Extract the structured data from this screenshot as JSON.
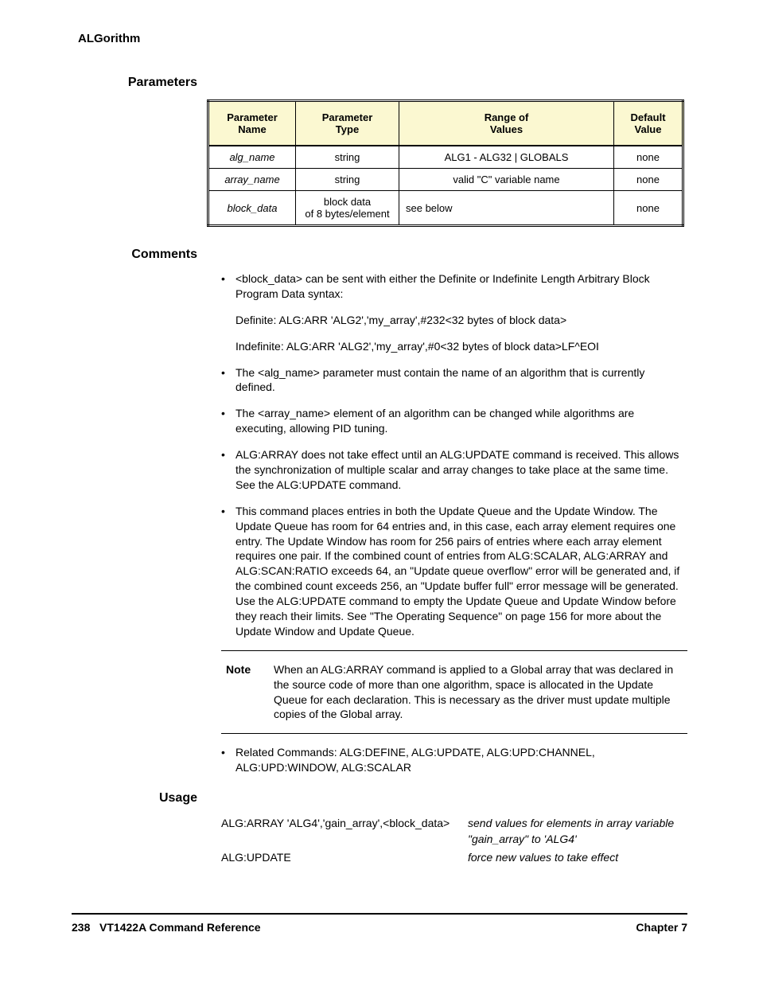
{
  "header": {
    "subsystem": "ALGorithm"
  },
  "parameters": {
    "section_label": "Parameters",
    "columns": [
      "Parameter\nName",
      "Parameter\nType",
      "Range of\nValues",
      "Default\nValue"
    ],
    "rows": [
      {
        "name": "alg_name",
        "type": "string",
        "range": "ALG1 - ALG32 | GLOBALS",
        "default": "none"
      },
      {
        "name": "array_name",
        "type": "string",
        "range": "valid \"C\" variable name",
        "default": "none"
      },
      {
        "name": "block_data",
        "type": "block data\nof 8 bytes/element",
        "range": "see below",
        "default": "none"
      }
    ],
    "table_colors": {
      "header_bg": "#fbf8d1",
      "border": "#000000"
    }
  },
  "comments": {
    "section_label": "Comments",
    "items": [
      "<block_data> can be sent with either the Definite or Indefinite Length Arbitrary Block Program Data syntax:",
      "The <alg_name> parameter must contain the name of an algorithm that is currently defined.",
      "The <array_name> element of an algorithm can be changed while algorithms are executing, allowing PID tuning.",
      "ALG:ARRAY does not take effect until an ALG:UPDATE command is received. This allows the synchronization of multiple scalar and array changes to take place at the same time. See the ALG:UPDATE command.",
      "This command places entries in both the Update Queue and the Update Window. The Update Queue has room for 64 entries and, in this case, each array element requires one entry. The Update Window has room for 256 pairs of entries where each array element requires one pair. If the combined count of entries from ALG:SCALAR, ALG:ARRAY and ALG:SCAN:RATIO exceeds 64, an \"Update queue overflow\" error will be generated and, if the combined count exceeds 256, an \"Update buffer full\" error message will be generated. Use the ALG:UPDATE command to empty the Update Queue and Update Window before they reach their limits. See \"The Operating Sequence\" on page 156 for more about the Update Window and Update Queue.",
      "Related Commands: ALG:DEFINE, ALG:UPDATE, ALG:UPD:CHANNEL, ALG:UPD:WINDOW, ALG:SCALAR"
    ],
    "example_lines": [
      "Definite: ALG:ARR 'ALG2','my_array',#232<32 bytes of block data>",
      "Indefinite: ALG:ARR 'ALG2','my_array',#0<32 bytes of block data>LF^EOI"
    ]
  },
  "note": {
    "label": "Note",
    "text": "When an ALG:ARRAY command is applied to a Global array that was declared in the source code of more than one algorithm, space is allocated in the Update Queue for each declaration. This is necessary as the driver must update multiple copies of the Global array."
  },
  "usage": {
    "section_label": "Usage",
    "rows": [
      {
        "cmd": "ALG:ARRAY 'ALG4','gain_array',<block_data>",
        "desc": "send values for elements in array variable \"gain_array\" to 'ALG4'"
      },
      {
        "cmd": "ALG:UPDATE",
        "desc": "force new values to take effect"
      }
    ]
  },
  "footer": {
    "page_num": "238",
    "title": "VT1422A Command Reference",
    "chapter": "Chapter 7"
  }
}
